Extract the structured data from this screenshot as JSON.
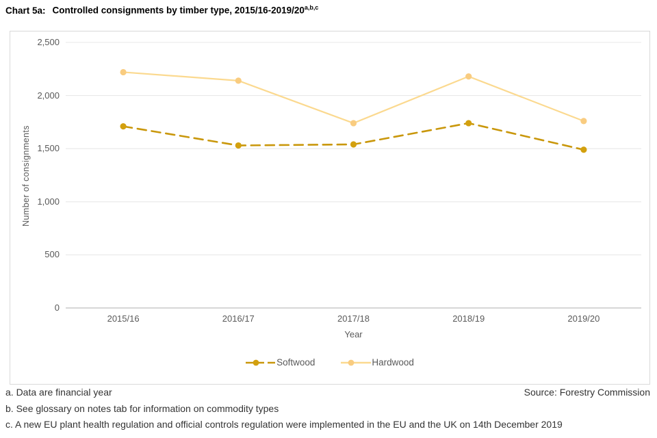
{
  "title": {
    "prefix": "Chart 5a:",
    "text": "Controlled consignments by timber type, 2015/16-2019/20",
    "superscript": "a,b,c"
  },
  "chart_data": {
    "type": "line",
    "categories": [
      "2015/16",
      "2016/17",
      "2017/18",
      "2018/19",
      "2019/20"
    ],
    "series": [
      {
        "name": "Softwood",
        "values": [
          1710,
          1530,
          1540,
          1740,
          1490
        ],
        "color": "#c9970b",
        "marker_color": "#d3a00e",
        "dash": "13 8"
      },
      {
        "name": "Hardwood",
        "values": [
          2220,
          2140,
          1740,
          2180,
          1760
        ],
        "color": "#fbd98f",
        "marker_color": "#f9cc80",
        "dash": ""
      }
    ],
    "xlabel": "Year",
    "ylabel": "Number of consignments",
    "ylim": [
      0,
      2500
    ],
    "y_ticks": [
      0,
      500,
      1000,
      1500,
      2000,
      2500
    ],
    "y_tick_labels": [
      "0",
      "500",
      "1,000",
      "1,500",
      "2,000",
      "2,500"
    ],
    "grid": true,
    "legend_position": "bottom"
  },
  "colors": {
    "grid": "#e8e8e8",
    "axis_line": "#bfbfbf",
    "tick_text": "#595959",
    "footnote_text": "#333333"
  },
  "footnotes": [
    "a. Data are financial year",
    "b. See glossary on notes tab for information on commodity types",
    "c. A new EU plant health regulation and official controls regulation were implemented in the EU and the UK on 14th December 2019"
  ],
  "source": "Source: Forestry Commission"
}
